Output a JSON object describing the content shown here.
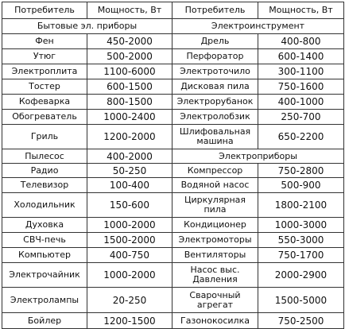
{
  "headers": [
    "Потребитель",
    "Мощность, Вт",
    "Потребитель",
    "Мощность, Вт"
  ],
  "sections": {
    "household": "Бытовые эл. приборы",
    "power_tools": "Электроинструмент",
    "appliances": "Электроприборы"
  },
  "left": [
    {
      "name": "Фен",
      "power": "450-2000"
    },
    {
      "name": "Утюг",
      "power": "500-2000"
    },
    {
      "name": "Электроплита",
      "power": "1100-6000"
    },
    {
      "name": "Тостер",
      "power": "600-1500"
    },
    {
      "name": "Кофеварка",
      "power": "800-1500"
    },
    {
      "name": "Обогреватель",
      "power": "1000-2400"
    },
    {
      "name": "Гриль",
      "power": "1200-2000"
    },
    {
      "name": "Пылесос",
      "power": "400-2000"
    },
    {
      "name": "Радио",
      "power": "50-250"
    },
    {
      "name": "Телевизор",
      "power": "100-400"
    },
    {
      "name": "Холодильник",
      "power": "150-600"
    },
    {
      "name": "Духовка",
      "power": "1000-2000"
    },
    {
      "name": "СВЧ-печь",
      "power": "1500-2000"
    },
    {
      "name": "Компьютер",
      "power": "400-750"
    },
    {
      "name": "Электрочайник",
      "power": "1000-2000"
    },
    {
      "name": "Электролампы",
      "power": "20-250"
    },
    {
      "name": "Бойлер",
      "power": "1200-1500"
    }
  ],
  "right_tools": [
    {
      "name": "Дрель",
      "power": "400-800"
    },
    {
      "name": "Перфоратор",
      "power": "600-1400"
    },
    {
      "name": "Электроточило",
      "power": "300-1100"
    },
    {
      "name": "Дисковая пила",
      "power": "750-1600"
    },
    {
      "name": "Электрорубанок",
      "power": "400-1000"
    },
    {
      "name": "Электролобзик",
      "power": "250-700"
    },
    {
      "name": "Шлифовальная машина",
      "power": "650-2200"
    }
  ],
  "right_appliances": [
    {
      "name": "Компрессор",
      "power": "750-2800"
    },
    {
      "name": "Водяной насос",
      "power": "500-900"
    },
    {
      "name": "Циркулярная пила",
      "power": "1800-2100"
    },
    {
      "name": "Кондиционер",
      "power": "1000-3000"
    },
    {
      "name": "Электромоторы",
      "power": "550-3000"
    },
    {
      "name": "Вентиляторы",
      "power": "750-1700"
    },
    {
      "name": "Насос выс. Давления",
      "power": "2000-2900"
    },
    {
      "name": "Сварочный агрегат",
      "power": "1500-5000"
    },
    {
      "name": "Газонокосилка",
      "power": "750-2500"
    }
  ]
}
